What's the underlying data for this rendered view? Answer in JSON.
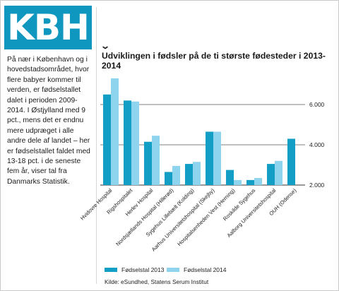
{
  "logo": {
    "text": "KBH"
  },
  "article": {
    "body": "På nær i København og i hovedstadsområdet, hvor flere babyer kommer til verden, er fødselstallet dalet i perioden 2009-2014. I Østjylland med 9 pct., mens det er endnu mere udpræget i alle andre dele af landet – her er fødselstallet faldet med 13-18 pct. i de seneste fem år, viser tal fra Danmarks Statistik."
  },
  "colors": {
    "series_2013": "#139fc5",
    "series_2014": "#8fd4ef",
    "logo_bg": "#0f97bf"
  },
  "chart_data": {
    "type": "bar",
    "title": "Udviklingen i fødsler på de ti største fødesteder i 2013-2014",
    "categories": [
      "Hvidovre Hospital",
      "Rigshospitalet",
      "Herlev Hospital",
      "Nordsjællands Hospital (Hillerød)",
      "Sygehus Lillebælt (Kolding)",
      "Aarhus Universitetshospital (Skejby)",
      "Hospitalsenheden Vest (Herning)",
      "Roskilde Sygehus",
      "Aalborg Universitetshospital",
      "OUH (Odense)"
    ],
    "series": [
      {
        "name": "Fødselstal 2013",
        "values": [
          6500,
          6200,
          4150,
          2650,
          3050,
          4650,
          2750,
          2250,
          3050,
          4300
        ]
      },
      {
        "name": "Fødselstal 2014",
        "values": [
          7300,
          6150,
          4450,
          2950,
          3150,
          4650,
          2250,
          2350,
          3200,
          null
        ]
      }
    ],
    "ylim": [
      2000,
      7500
    ],
    "yticks": [
      2000,
      4000,
      6000
    ],
    "ytick_labels": [
      "2.000",
      "4.000",
      "6.000"
    ],
    "xlabel": "",
    "ylabel": "",
    "legend": "bottom",
    "grid": true
  },
  "source": "Kilde: eSundhed, Statens Serum Institut"
}
